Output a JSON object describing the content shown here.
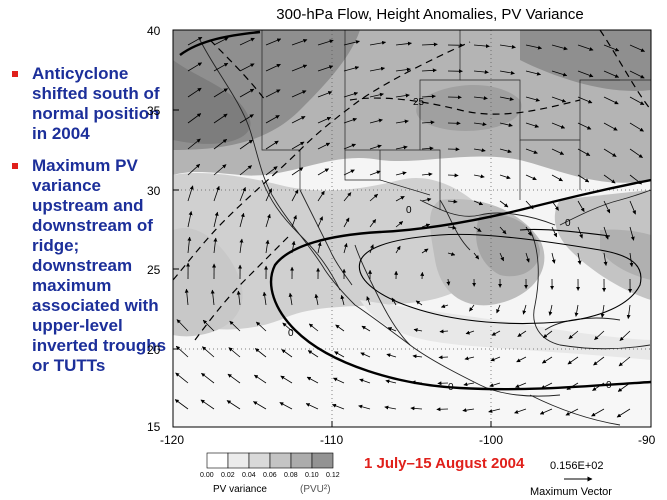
{
  "title": "300-hPa Flow, Height Anomalies, PV Variance",
  "bullets": [
    "Anticyclone shifted south of normal position in 2004",
    "Maximum PV variance upstream and downstream of ridge; downstream maximum associated with upper-level inverted troughs or TUTTs"
  ],
  "date_range": "1 July–15 August 2004",
  "axes": {
    "lat_ticks": [
      "40",
      "35",
      "30",
      "25",
      "20",
      "15"
    ],
    "lon_ticks": [
      "-120",
      "-110",
      "-100",
      "-90"
    ]
  },
  "contour_labels": {
    "height_25": "25",
    "zero": "0"
  },
  "colorbar": {
    "label": "PV variance",
    "unit": "(PVU²)",
    "ticks": [
      "0.00",
      "0.02",
      "0.04",
      "0.06",
      "0.08",
      "0.10",
      "0.12"
    ],
    "colors": [
      "#ffffff",
      "#ececec",
      "#d9d9d9",
      "#c4c4c4",
      "#acacac",
      "#939393"
    ]
  },
  "max_vector": {
    "value": "0.156E+02",
    "label": "Maximum Vector"
  }
}
